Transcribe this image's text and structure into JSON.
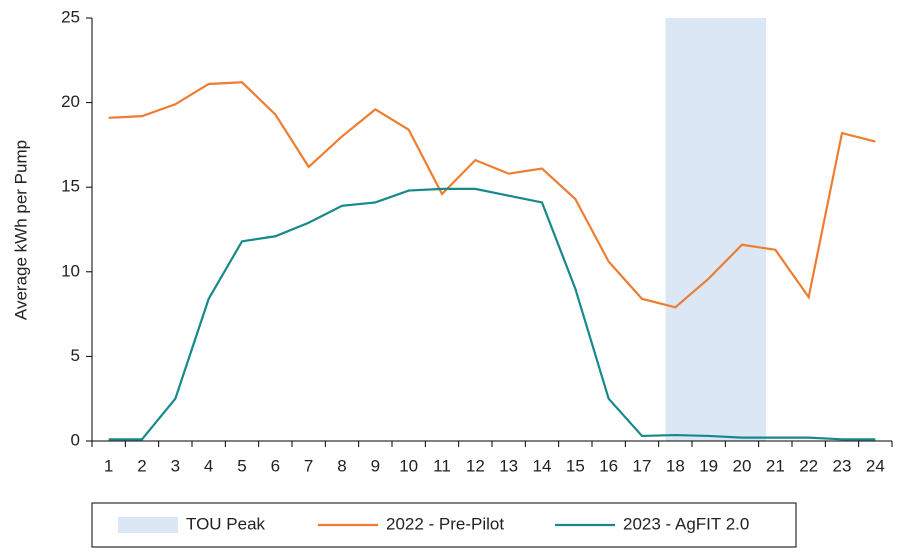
{
  "chart_data": {
    "type": "line",
    "y_label": "Average kWh per Pump",
    "categories": [
      "1",
      "2",
      "3",
      "4",
      "5",
      "6",
      "7",
      "8",
      "9",
      "10",
      "11",
      "12",
      "13",
      "14",
      "15",
      "16",
      "17",
      "18",
      "19",
      "20",
      "21",
      "22",
      "23",
      "24"
    ],
    "series": [
      {
        "name": "TOU Peak",
        "type": "bar",
        "color": "#dce7f5",
        "values": [
          null,
          null,
          null,
          null,
          null,
          null,
          null,
          null,
          null,
          null,
          null,
          null,
          null,
          null,
          null,
          null,
          null,
          25,
          25,
          25,
          null,
          null,
          null,
          null
        ]
      },
      {
        "name": "2022 - Pre-Pilot",
        "color": "#ed7d31",
        "values": [
          19.1,
          19.2,
          19.9,
          21.1,
          21.2,
          19.3,
          16.2,
          18.0,
          19.6,
          18.4,
          14.6,
          16.6,
          15.8,
          16.1,
          14.3,
          10.6,
          8.4,
          7.9,
          9.6,
          11.6,
          11.3,
          8.5,
          18.2,
          17.7
        ]
      },
      {
        "name": "2023 - AgFIT 2.0",
        "color": "#17898a",
        "values": [
          0.1,
          0.1,
          2.5,
          8.4,
          11.8,
          12.1,
          12.9,
          13.9,
          14.1,
          14.8,
          14.9,
          14.9,
          14.5,
          14.1,
          9.0,
          2.5,
          0.3,
          0.35,
          0.3,
          0.2,
          0.2,
          0.2,
          0.1,
          0.1
        ]
      }
    ],
    "ylim": [
      0,
      25
    ],
    "yticks": [
      0,
      5,
      10,
      15,
      20,
      25
    ],
    "grid": false
  }
}
